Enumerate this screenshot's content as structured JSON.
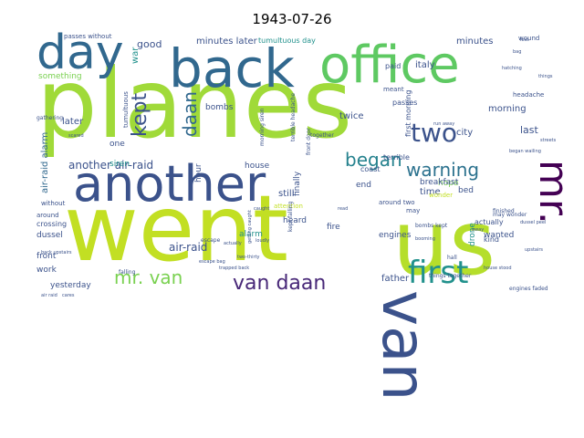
{
  "title": "1943-07-26",
  "palette": [
    "#3b528b",
    "#21918c",
    "#5ec962",
    "#a0da39",
    "#c2df23",
    "#440154",
    "#31688e",
    "#2c728e",
    "#1f9e89",
    "#7ad151",
    "#b5de2b",
    "#d2e21b",
    "#482878",
    "#26828e"
  ],
  "words": [
    {
      "text": "planes",
      "size": 105,
      "color": "#a0da39",
      "rotate": 0
    },
    {
      "text": "went",
      "size": 100,
      "color": "#c2df23",
      "rotate": 0
    },
    {
      "text": "us",
      "size": 98,
      "color": "#b5de2b",
      "rotate": 0
    },
    {
      "text": "back",
      "size": 58,
      "color": "#31688e",
      "rotate": 0
    },
    {
      "text": "office",
      "size": 56,
      "color": "#5ec962",
      "rotate": 0
    },
    {
      "text": "another",
      "size": 54,
      "color": "#3b528b",
      "rotate": 0
    },
    {
      "text": "day",
      "size": 52,
      "color": "#31688e",
      "rotate": 0
    },
    {
      "text": "van",
      "size": 66,
      "color": "#3b528b",
      "rotate": 90
    },
    {
      "text": "mr.",
      "size": 44,
      "color": "#440154",
      "rotate": 90
    },
    {
      "text": "first",
      "size": 34,
      "color": "#21918c",
      "rotate": 0
    },
    {
      "text": "two",
      "size": 28,
      "color": "#3b528b",
      "rotate": 0
    },
    {
      "text": "warning",
      "size": 20,
      "color": "#2c728e",
      "rotate": 0
    },
    {
      "text": "began",
      "size": 20,
      "color": "#26828e",
      "rotate": 0
    },
    {
      "text": "kept",
      "size": 22,
      "color": "#3b528b",
      "rotate": 270
    },
    {
      "text": "daan",
      "size": 20,
      "color": "#31688e",
      "rotate": 270
    },
    {
      "text": "van daan",
      "size": 22,
      "color": "#482878",
      "rotate": 0
    },
    {
      "text": "mr. van",
      "size": 20,
      "color": "#7ad151",
      "rotate": 0
    },
    {
      "text": "another air-raid",
      "size": 12,
      "color": "#3b528b",
      "rotate": 0
    },
    {
      "text": "air-raid alarm",
      "size": 10,
      "color": "#31688e",
      "rotate": 270
    },
    {
      "text": "air-raid",
      "size": 12,
      "color": "#3b528b",
      "rotate": 0
    },
    {
      "text": "good",
      "size": 11,
      "color": "#3b528b",
      "rotate": 0
    },
    {
      "text": "war",
      "size": 10,
      "color": "#21918c",
      "rotate": 270
    },
    {
      "text": "minutes later",
      "size": 10,
      "color": "#3b528b",
      "rotate": 0
    },
    {
      "text": "minutes",
      "size": 10,
      "color": "#3b528b",
      "rotate": 0
    },
    {
      "text": "tumultuous day",
      "size": 8,
      "color": "#21918c",
      "rotate": 0
    },
    {
      "text": "italy",
      "size": 10,
      "color": "#3b528b",
      "rotate": 0
    },
    {
      "text": "morning",
      "size": 10,
      "color": "#3b528b",
      "rotate": 0
    },
    {
      "text": "last",
      "size": 11,
      "color": "#3b528b",
      "rotate": 0
    },
    {
      "text": "twice",
      "size": 10,
      "color": "#3b528b",
      "rotate": 0
    },
    {
      "text": "city",
      "size": 10,
      "color": "#3b528b",
      "rotate": 0
    },
    {
      "text": "time",
      "size": 10,
      "color": "#3b528b",
      "rotate": 0
    },
    {
      "text": "still",
      "size": 10,
      "color": "#3b528b",
      "rotate": 0
    },
    {
      "text": "later",
      "size": 10,
      "color": "#3b528b",
      "rotate": 0
    },
    {
      "text": "something",
      "size": 9,
      "color": "#7ad151",
      "rotate": 0
    },
    {
      "text": "bombs",
      "size": 9,
      "color": "#3b528b",
      "rotate": 0
    },
    {
      "text": "hour",
      "size": 9,
      "color": "#3b528b",
      "rotate": 270
    },
    {
      "text": "one",
      "size": 9,
      "color": "#3b528b",
      "rotate": 0
    },
    {
      "text": "siren",
      "size": 9,
      "color": "#21918c",
      "rotate": 0
    },
    {
      "text": "house",
      "size": 9,
      "color": "#3b528b",
      "rotate": 0
    },
    {
      "text": "dussel",
      "size": 9,
      "color": "#3b528b",
      "rotate": 0
    },
    {
      "text": "front",
      "size": 9,
      "color": "#3b528b",
      "rotate": 0
    },
    {
      "text": "work",
      "size": 9,
      "color": "#3b528b",
      "rotate": 0
    },
    {
      "text": "yesterday",
      "size": 9,
      "color": "#3b528b",
      "rotate": 0
    },
    {
      "text": "crossing",
      "size": 8,
      "color": "#3b528b",
      "rotate": 0
    },
    {
      "text": "alarm",
      "size": 9,
      "color": "#21918c",
      "rotate": 0
    },
    {
      "text": "heard",
      "size": 9,
      "color": "#3b528b",
      "rotate": 0
    },
    {
      "text": "fire",
      "size": 9,
      "color": "#3b528b",
      "rotate": 0
    },
    {
      "text": "engines",
      "size": 9,
      "color": "#3b528b",
      "rotate": 0
    },
    {
      "text": "finally",
      "size": 9,
      "color": "#3b528b",
      "rotate": 270
    },
    {
      "text": "father",
      "size": 10,
      "color": "#3b528b",
      "rotate": 0
    },
    {
      "text": "hope",
      "size": 9,
      "color": "#7ad151",
      "rotate": 0
    },
    {
      "text": "bed",
      "size": 9,
      "color": "#3b528b",
      "rotate": 0
    },
    {
      "text": "breakfast",
      "size": 9,
      "color": "#3b528b",
      "rotate": 0
    },
    {
      "text": "end",
      "size": 9,
      "color": "#3b528b",
      "rotate": 0
    },
    {
      "text": "coast",
      "size": 8,
      "color": "#3b528b",
      "rotate": 0
    },
    {
      "text": "terrible",
      "size": 8,
      "color": "#3b528b",
      "rotate": 0
    },
    {
      "text": "first morning",
      "size": 8,
      "color": "#3b528b",
      "rotate": 270
    },
    {
      "text": "wanted",
      "size": 9,
      "color": "#3b528b",
      "rotate": 0
    },
    {
      "text": "actually",
      "size": 8,
      "color": "#3b528b",
      "rotate": 0
    },
    {
      "text": "drone",
      "size": 9,
      "color": "#21918c",
      "rotate": 270
    },
    {
      "text": "kind",
      "size": 8,
      "color": "#3b528b",
      "rotate": 0
    },
    {
      "text": "paid",
      "size": 8,
      "color": "#3b528b",
      "rotate": 0
    },
    {
      "text": "passes",
      "size": 8,
      "color": "#3b528b",
      "rotate": 0
    },
    {
      "text": "passes without",
      "size": 7,
      "color": "#3b528b",
      "rotate": 0
    },
    {
      "text": "wound",
      "size": 7,
      "color": "#3b528b",
      "rotate": 0
    },
    {
      "text": "meant",
      "size": 7,
      "color": "#3b528b",
      "rotate": 0
    },
    {
      "text": "headache",
      "size": 7,
      "color": "#3b528b",
      "rotate": 0
    },
    {
      "text": "tumultuous",
      "size": 7,
      "color": "#3b528b",
      "rotate": 270
    },
    {
      "text": "gathering",
      "size": 6,
      "color": "#3b528b",
      "rotate": 0
    },
    {
      "text": "around",
      "size": 7,
      "color": "#3b528b",
      "rotate": 0
    },
    {
      "text": "without",
      "size": 7,
      "color": "#3b528b",
      "rotate": 0
    },
    {
      "text": "may",
      "size": 7,
      "color": "#3b528b",
      "rotate": 0
    },
    {
      "text": "may wonder",
      "size": 6,
      "color": "#3b528b",
      "rotate": 0
    },
    {
      "text": "wonder",
      "size": 7,
      "color": "#c2df23",
      "rotate": 0
    },
    {
      "text": "attention",
      "size": 7,
      "color": "#c2df23",
      "rotate": 0
    },
    {
      "text": "together",
      "size": 6,
      "color": "#3b528b",
      "rotate": 0
    },
    {
      "text": "around two",
      "size": 7,
      "color": "#3b528b",
      "rotate": 0
    },
    {
      "text": "bombs kept",
      "size": 6,
      "color": "#3b528b",
      "rotate": 0
    },
    {
      "text": "escape",
      "size": 6,
      "color": "#3b528b",
      "rotate": 0
    },
    {
      "text": "falling",
      "size": 6,
      "color": "#3b528b",
      "rotate": 0
    },
    {
      "text": "hall",
      "size": 6,
      "color": "#3b528b",
      "rotate": 0
    },
    {
      "text": "things together",
      "size": 6,
      "color": "#3b528b",
      "rotate": 0
    },
    {
      "text": "engines faded",
      "size": 6,
      "color": "#3b528b",
      "rotate": 0
    },
    {
      "text": "kept falling",
      "size": 6,
      "color": "#3b528b",
      "rotate": 270
    },
    {
      "text": "terrible headache",
      "size": 6,
      "color": "#3b528b",
      "rotate": 270
    },
    {
      "text": "morning siren",
      "size": 6,
      "color": "#3b528b",
      "rotate": 270
    },
    {
      "text": "front door",
      "size": 6,
      "color": "#3b528b",
      "rotate": 270
    },
    {
      "text": "finished",
      "size": 6,
      "color": "#3b528b",
      "rotate": 0
    },
    {
      "text": "booming",
      "size": 5,
      "color": "#3b528b",
      "rotate": 0
    },
    {
      "text": "upstairs",
      "size": 5,
      "color": "#3b528b",
      "rotate": 0
    },
    {
      "text": "back upstairs",
      "size": 5,
      "color": "#3b528b",
      "rotate": 0
    },
    {
      "text": "began wailing",
      "size": 5,
      "color": "#3b528b",
      "rotate": 0
    },
    {
      "text": "dussel peel",
      "size": 5,
      "color": "#3b528b",
      "rotate": 0
    },
    {
      "text": "things",
      "size": 5,
      "color": "#3b528b",
      "rotate": 0
    },
    {
      "text": "away",
      "size": 5,
      "color": "#3b528b",
      "rotate": 0
    },
    {
      "text": "bag",
      "size": 5,
      "color": "#3b528b",
      "rotate": 0
    },
    {
      "text": "escape bag",
      "size": 5,
      "color": "#3b528b",
      "rotate": 0
    },
    {
      "text": "two-thirty",
      "size": 5,
      "color": "#3b528b",
      "rotate": 0
    },
    {
      "text": "loudly",
      "size": 5,
      "color": "#3b528b",
      "rotate": 0
    },
    {
      "text": "actually",
      "size": 5,
      "color": "#3b528b",
      "rotate": 0
    },
    {
      "text": "getting caught",
      "size": 5,
      "color": "#3b528b",
      "rotate": 270
    },
    {
      "text": "caught",
      "size": 5,
      "color": "#3b528b",
      "rotate": 0
    },
    {
      "text": "air raid",
      "size": 5,
      "color": "#3b528b",
      "rotate": 0
    },
    {
      "text": "house stood",
      "size": 5,
      "color": "#3b528b",
      "rotate": 0
    },
    {
      "text": "scared",
      "size": 5,
      "color": "#3b528b",
      "rotate": 0
    },
    {
      "text": "trapped back",
      "size": 5,
      "color": "#3b528b",
      "rotate": 0
    },
    {
      "text": "hatching",
      "size": 5,
      "color": "#3b528b",
      "rotate": 0
    },
    {
      "text": "less",
      "size": 5,
      "color": "#3b528b",
      "rotate": 0
    },
    {
      "text": "streets",
      "size": 5,
      "color": "#3b528b",
      "rotate": 0
    },
    {
      "text": "read",
      "size": 5,
      "color": "#3b528b",
      "rotate": 0
    },
    {
      "text": "run away",
      "size": 5,
      "color": "#3b528b",
      "rotate": 0
    },
    {
      "text": "cares",
      "size": 5,
      "color": "#3b528b",
      "rotate": 0
    }
  ]
}
